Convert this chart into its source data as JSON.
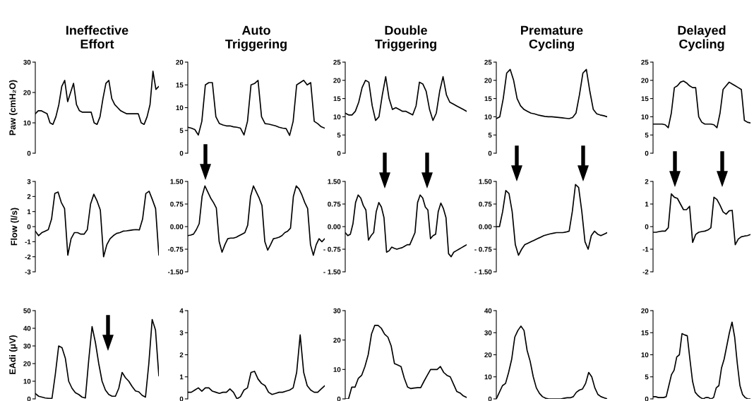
{
  "chart_data": [
    {
      "type": "line",
      "title": "Ineffective\nEffort",
      "ylabel": "Paw (cmH₂O)",
      "categories": [
        null,
        null,
        null,
        null,
        null,
        null,
        null,
        null,
        null,
        null,
        null,
        null,
        null,
        null,
        null,
        null,
        null,
        null,
        null,
        null,
        null,
        null,
        null,
        null,
        null,
        null,
        null,
        null,
        null,
        null,
        null,
        null,
        null,
        null,
        null,
        null,
        null,
        null,
        null,
        null,
        null,
        null,
        null
      ],
      "series": [
        {
          "color": "#000000",
          "values": [
            13,
            14,
            14,
            13.5,
            13,
            10,
            9.5,
            12,
            16,
            22,
            24,
            17,
            20,
            23,
            16,
            14,
            13.5,
            13.5,
            13.5,
            13.5,
            10,
            9.5,
            12,
            18,
            23,
            24,
            18,
            16,
            15,
            14,
            13.5,
            13,
            13,
            13,
            13,
            13,
            10,
            9.5,
            12,
            16,
            27,
            21,
            22
          ]
        }
      ],
      "ylim": [
        0,
        30
      ],
      "yticks": [
        0,
        10,
        20,
        30
      ],
      "tick_labels": "y"
    },
    {
      "type": "line",
      "title": "Auto\nTriggering",
      "categories": [
        null,
        null,
        null,
        null,
        null,
        null,
        null,
        null,
        null,
        null,
        null,
        null,
        null,
        null,
        null,
        null,
        null,
        null,
        null,
        null,
        null,
        null,
        null,
        null,
        null,
        null,
        null,
        null,
        null,
        null,
        null,
        null,
        null,
        null,
        null,
        null,
        null,
        null,
        null,
        null
      ],
      "series": [
        {
          "color": "#000000",
          "values": [
            5.7,
            5.5,
            5.2,
            4,
            7,
            15,
            15.5,
            15.5,
            8,
            6.5,
            6.2,
            6,
            6,
            5.8,
            5.7,
            5.5,
            4,
            7,
            15,
            15.3,
            16,
            8,
            6.5,
            6.4,
            6.2,
            6,
            5.7,
            5.5,
            5.4,
            3.9,
            7,
            15,
            15.5,
            16,
            15,
            15.5,
            7,
            6.5,
            5.8,
            5.5
          ]
        }
      ],
      "ylim": [
        0,
        20
      ],
      "yticks": [
        0,
        5,
        10,
        15,
        20
      ],
      "tick_labels": "y"
    },
    {
      "type": "line",
      "title": "Double\nTriggering",
      "categories": [
        null,
        null,
        null,
        null,
        null,
        null,
        null,
        null,
        null,
        null,
        null,
        null,
        null,
        null,
        null,
        null,
        null,
        null,
        null,
        null,
        null,
        null,
        null,
        null,
        null,
        null,
        null,
        null,
        null,
        null,
        null,
        null,
        null,
        null,
        null,
        null,
        null
      ],
      "series": [
        {
          "color": "#000000",
          "values": [
            11,
            10.5,
            10.5,
            11.5,
            14,
            18,
            20,
            19.5,
            13,
            9,
            10,
            16,
            21,
            15,
            12,
            12.5,
            12,
            11.5,
            11.5,
            11,
            10.5,
            13,
            19.5,
            19,
            17,
            12,
            9,
            11,
            17,
            21,
            16,
            14,
            13.5,
            13,
            12.5,
            12,
            11.5
          ]
        }
      ],
      "ylim": [
        0,
        25
      ],
      "yticks": [
        0,
        5,
        10,
        15,
        20,
        25
      ],
      "tick_labels": "y"
    },
    {
      "type": "line",
      "title": "Premature\nCycling",
      "categories": [
        null,
        null,
        null,
        null,
        null,
        null,
        null,
        null,
        null,
        null,
        null,
        null,
        null,
        null,
        null,
        null,
        null,
        null,
        null,
        null,
        null,
        null,
        null,
        null,
        null,
        null,
        null,
        null,
        null,
        null,
        null,
        null,
        null
      ],
      "series": [
        {
          "color": "#000000",
          "values": [
            9.5,
            10,
            15,
            22,
            23,
            20,
            15,
            13,
            12,
            11.5,
            11,
            10.8,
            10.5,
            10.3,
            10.1,
            10,
            10,
            9.9,
            9.8,
            9.7,
            9.6,
            9.5,
            9.8,
            11,
            16,
            22,
            23,
            17,
            12,
            10.8,
            10.5,
            10.3,
            10
          ]
        }
      ],
      "ylim": [
        0,
        25
      ],
      "yticks": [
        0,
        5,
        10,
        15,
        20,
        25
      ],
      "tick_labels": "y"
    },
    {
      "type": "line",
      "title": "Delayed\nCycling",
      "categories": [
        null,
        null,
        null,
        null,
        null,
        null,
        null,
        null,
        null,
        null,
        null,
        null,
        null,
        null,
        null,
        null,
        null,
        null,
        null,
        null,
        null,
        null,
        null,
        null,
        null,
        null,
        null,
        null,
        null,
        null,
        null,
        null,
        null
      ],
      "series": [
        {
          "color": "#000000",
          "values": [
            8,
            8,
            8,
            8,
            7.8,
            7,
            11,
            18,
            18.5,
            19.5,
            19.8,
            19.3,
            18.5,
            18,
            18,
            10,
            8.5,
            8,
            8,
            8,
            7.8,
            7,
            11,
            17.5,
            18.5,
            19.5,
            19,
            18.5,
            18,
            17.5,
            9,
            8.5,
            8.3
          ]
        }
      ],
      "ylim": [
        0,
        25
      ],
      "yticks": [
        0,
        5,
        10,
        15,
        20,
        25
      ],
      "tick_labels": "y"
    },
    {
      "type": "line",
      "ylabel": "Flow (l/s)",
      "categories": [
        null,
        null,
        null,
        null,
        null,
        null,
        null,
        null,
        null,
        null,
        null,
        null,
        null,
        null,
        null,
        null,
        null,
        null,
        null,
        null,
        null,
        null,
        null,
        null,
        null,
        null,
        null,
        null,
        null,
        null,
        null,
        null,
        null,
        null,
        null,
        null,
        null,
        null,
        null
      ],
      "series": [
        {
          "color": "#000000",
          "values": [
            -0.3,
            -0.6,
            -0.4,
            -0.3,
            -0.2,
            0.5,
            2.2,
            2.3,
            1.6,
            1.2,
            -1.9,
            -0.8,
            -0.4,
            -0.4,
            -0.5,
            -0.5,
            -0.2,
            1.5,
            2.15,
            1.7,
            1.1,
            -2.0,
            -1.2,
            -0.8,
            -0.6,
            -0.45,
            -0.4,
            -0.3,
            -0.28,
            -0.25,
            -0.22,
            -0.2,
            -0.22,
            0.5,
            2.2,
            2.35,
            1.8,
            1.2,
            -1.9
          ]
        }
      ],
      "ylim": [
        -3,
        3
      ],
      "yticks": [
        -3,
        -2,
        -1,
        0,
        1,
        2,
        3
      ],
      "tick_labels": "y"
    },
    {
      "type": "line",
      "categories": [
        null,
        null,
        null,
        null,
        null,
        null,
        null,
        null,
        null,
        null,
        null,
        null,
        null,
        null,
        null,
        null,
        null,
        null,
        null,
        null,
        null,
        null,
        null,
        null,
        null,
        null,
        null,
        null,
        null,
        null,
        null,
        null,
        null,
        null,
        null,
        null,
        null,
        null,
        null,
        null,
        null,
        null,
        null,
        null,
        null,
        null,
        null,
        null,
        null
      ],
      "series": [
        {
          "color": "#000000",
          "values": [
            -0.3,
            -0.28,
            -0.25,
            -0.1,
            0.1,
            1.0,
            1.35,
            1.15,
            0.95,
            0.8,
            0.62,
            -0.5,
            -0.85,
            -0.6,
            -0.4,
            -0.38,
            -0.38,
            -0.35,
            -0.3,
            -0.25,
            -0.2,
            0.05,
            1.0,
            1.35,
            1.15,
            0.95,
            0.7,
            -0.5,
            -0.78,
            -0.6,
            -0.4,
            -0.38,
            -0.35,
            -0.3,
            -0.2,
            -0.15,
            -0.05,
            1.0,
            1.35,
            1.25,
            1.05,
            0.8,
            0.6,
            -0.6,
            -0.95,
            -0.6,
            -0.4,
            -0.5,
            -0.4
          ]
        }
      ],
      "ylim": [
        -1.5,
        1.5
      ],
      "yticks": [
        {
          "value": -1.5,
          "label": "-1.50"
        },
        {
          "value": -0.75,
          "label": "-0.75"
        },
        {
          "value": 0,
          "label": "0.00"
        },
        {
          "value": 0.75,
          "label": "0.75"
        },
        {
          "value": 1.5,
          "label": "1.50"
        }
      ],
      "tick_labels": "y"
    },
    {
      "type": "line",
      "categories": [
        null,
        null,
        null,
        null,
        null,
        null,
        null,
        null,
        null,
        null,
        null,
        null,
        null,
        null,
        null,
        null,
        null,
        null,
        null,
        null,
        null,
        null,
        null,
        null,
        null,
        null,
        null,
        null,
        null,
        null,
        null,
        null,
        null,
        null,
        null,
        null,
        null,
        null,
        null,
        null,
        null,
        null,
        null,
        null,
        null,
        null,
        null,
        null
      ],
      "series": [
        {
          "color": "#000000",
          "values": [
            -0.2,
            -0.3,
            -0.25,
            0.1,
            0.8,
            1.05,
            0.95,
            0.7,
            0.55,
            -0.45,
            -0.3,
            -0.2,
            0.5,
            0.8,
            0.65,
            0.3,
            -0.85,
            -0.8,
            -0.68,
            -0.72,
            -0.75,
            -0.72,
            -0.7,
            -0.65,
            -0.6,
            -0.6,
            -0.4,
            -0.2,
            0.8,
            1.05,
            0.95,
            0.65,
            0.55,
            -0.4,
            -0.3,
            -0.25,
            0.5,
            0.78,
            0.6,
            0.3,
            -0.9,
            -1.0,
            -0.85,
            -0.8,
            -0.75,
            -0.7,
            -0.65,
            -0.6
          ]
        }
      ],
      "ylim": [
        -1.5,
        1.5
      ],
      "yticks": [
        {
          "value": -1.5,
          "label": "- 1.50"
        },
        {
          "value": -0.75,
          "label": "- 0.75"
        },
        {
          "value": 0,
          "label": "0.00"
        },
        {
          "value": 0.75,
          "label": "0.75"
        },
        {
          "value": 1.5,
          "label": "1.50"
        }
      ],
      "tick_labels": "y"
    },
    {
      "type": "line",
      "categories": [
        null,
        null,
        null,
        null,
        null,
        null,
        null,
        null,
        null,
        null,
        null,
        null,
        null,
        null,
        null,
        null,
        null,
        null,
        null,
        null,
        null,
        null,
        null,
        null,
        null,
        null,
        null,
        null,
        null,
        null,
        null,
        null,
        null,
        null,
        null,
        null
      ],
      "series": [
        {
          "color": "#000000",
          "values": [
            0,
            0,
            0.5,
            1.2,
            1.1,
            0.5,
            -0.6,
            -0.95,
            -0.75,
            -0.6,
            -0.55,
            -0.5,
            -0.45,
            -0.4,
            -0.35,
            -0.3,
            -0.27,
            -0.24,
            -0.22,
            -0.2,
            -0.2,
            -0.2,
            -0.18,
            -0.15,
            0.5,
            1.4,
            1.3,
            0.5,
            -0.5,
            -0.75,
            -0.3,
            -0.15,
            -0.25,
            -0.3,
            -0.25,
            -0.2
          ]
        }
      ],
      "ylim": [
        -1.5,
        1.5
      ],
      "yticks": [
        {
          "value": -1.5,
          "label": "- 1.50"
        },
        {
          "value": -0.75,
          "label": "- 0.75"
        },
        {
          "value": 0,
          "label": "0.00"
        },
        {
          "value": 0.75,
          "label": "0.75"
        },
        {
          "value": 1.5,
          "label": "1.50"
        }
      ],
      "tick_labels": "y"
    },
    {
      "type": "line",
      "categories": [
        null,
        null,
        null,
        null,
        null,
        null,
        null,
        null,
        null,
        null,
        null,
        null,
        null,
        null,
        null,
        null,
        null,
        null,
        null,
        null,
        null,
        null,
        null,
        null,
        null,
        null,
        null,
        null,
        null,
        null,
        null,
        null,
        null
      ],
      "series": [
        {
          "color": "#000000",
          "values": [
            -0.25,
            -0.25,
            -0.22,
            -0.2,
            -0.2,
            -0.05,
            1.45,
            1.3,
            1.25,
            1.0,
            0.75,
            0.75,
            0.9,
            -0.7,
            -0.35,
            -0.25,
            -0.22,
            -0.2,
            -0.15,
            -0.05,
            1.3,
            1.2,
            0.95,
            0.65,
            0.55,
            0.7,
            0.72,
            -0.8,
            -0.55,
            -0.45,
            -0.42,
            -0.4,
            -0.35
          ]
        }
      ],
      "ylim": [
        -2,
        2
      ],
      "yticks": [
        -2,
        -1,
        0,
        1,
        2
      ],
      "tick_labels": "y"
    },
    {
      "type": "line",
      "ylabel": "EAdi (μV)",
      "categories": [
        null,
        null,
        null,
        null,
        null,
        null,
        null,
        null,
        null,
        null,
        null,
        null,
        null,
        null,
        null,
        null,
        null,
        null,
        null,
        null,
        null,
        null,
        null,
        null,
        null,
        null,
        null,
        null,
        null,
        null,
        null,
        null,
        null,
        null,
        null,
        null,
        null,
        null
      ],
      "series": [
        {
          "color": "#000000",
          "values": [
            3,
            1.5,
            1,
            0.5,
            0.3,
            0.3,
            14,
            30,
            29,
            23,
            10,
            6,
            3.5,
            2.5,
            1,
            0.5,
            22,
            41,
            32,
            20,
            10,
            5,
            2.5,
            1.5,
            1.5,
            6,
            15,
            12,
            10,
            7,
            4.5,
            4,
            2,
            1,
            20,
            45,
            39,
            13
          ]
        }
      ],
      "ylim": [
        0,
        50
      ],
      "yticks": [
        0,
        10,
        20,
        30,
        40,
        50
      ],
      "tick_labels": "y"
    },
    {
      "type": "line",
      "categories": [
        null,
        null,
        null,
        null,
        null,
        null,
        null,
        null,
        null,
        null,
        null,
        null,
        null,
        null,
        null,
        null,
        null,
        null,
        null,
        null,
        null,
        null,
        null,
        null,
        null,
        null,
        null,
        null,
        null,
        null,
        null,
        null,
        null,
        null,
        null,
        null,
        null,
        null,
        null,
        null
      ],
      "series": [
        {
          "color": "#000000",
          "values": [
            0.3,
            0.3,
            0.4,
            0.5,
            0.35,
            0.5,
            0.5,
            0.35,
            0.3,
            0.25,
            0.3,
            0.3,
            0.45,
            0.3,
            0,
            0.1,
            0.4,
            0.5,
            1.2,
            1.25,
            0.9,
            0.7,
            0.6,
            0.3,
            0.2,
            0.25,
            0.3,
            0.3,
            0.35,
            0.4,
            0.5,
            1.2,
            2.9,
            1.2,
            0.6,
            0.4,
            0.3,
            0.3,
            0.45,
            0.6
          ]
        }
      ],
      "ylim": [
        0,
        4
      ],
      "yticks": [
        0,
        1,
        2,
        3,
        4
      ],
      "tick_labels": "y"
    },
    {
      "type": "line",
      "categories": [
        null,
        null,
        null,
        null,
        null,
        null,
        null,
        null,
        null,
        null,
        null,
        null,
        null,
        null,
        null,
        null,
        null,
        null,
        null,
        null,
        null,
        null,
        null,
        null,
        null,
        null,
        null,
        null,
        null,
        null,
        null,
        null,
        null,
        null,
        null,
        null,
        null,
        null
      ],
      "series": [
        {
          "color": "#000000",
          "values": [
            0,
            0,
            4,
            4,
            7,
            8,
            11,
            15,
            22,
            25,
            25,
            24,
            22,
            21,
            18,
            12,
            11.5,
            11,
            7,
            4,
            3.5,
            3.7,
            3.8,
            3.8,
            6,
            8,
            10,
            10,
            10,
            11,
            9,
            8,
            7.5,
            5,
            2.5,
            2,
            1,
            0.5
          ]
        }
      ],
      "ylim": [
        0,
        30
      ],
      "yticks": [
        0,
        10,
        20,
        30
      ],
      "tick_labels": "y"
    },
    {
      "type": "line",
      "categories": [
        null,
        null,
        null,
        null,
        null,
        null,
        null,
        null,
        null,
        null,
        null,
        null,
        null,
        null,
        null,
        null,
        null,
        null,
        null,
        null,
        null,
        null,
        null,
        null,
        null,
        null,
        null,
        null,
        null,
        null,
        null,
        null,
        null,
        null,
        null,
        null,
        null
      ],
      "series": [
        {
          "color": "#000000",
          "values": [
            0,
            3,
            6,
            7,
            12,
            18,
            28,
            31,
            33,
            31,
            22,
            17,
            10,
            5,
            2.5,
            1,
            0.3,
            0,
            0,
            0,
            0,
            0,
            0.3,
            0.5,
            0.5,
            1,
            3,
            4,
            4.5,
            7,
            12,
            10,
            5,
            2,
            1,
            0.5,
            0
          ]
        }
      ],
      "ylim": [
        0,
        40
      ],
      "yticks": [
        0,
        10,
        20,
        30,
        40
      ],
      "tick_labels": "y"
    },
    {
      "type": "line",
      "categories": [
        null,
        null,
        null,
        null,
        null,
        null,
        null,
        null,
        null,
        null,
        null,
        null,
        null,
        null,
        null,
        null,
        null,
        null,
        null,
        null,
        null,
        null,
        null,
        null,
        null,
        null,
        null,
        null,
        null,
        null,
        null,
        null,
        null,
        null,
        null,
        null,
        null,
        null
      ],
      "series": [
        {
          "color": "#000000",
          "values": [
            0.5,
            0.5,
            0.3,
            0.3,
            0.3,
            0.5,
            3,
            5.5,
            6.5,
            9.5,
            10,
            14.8,
            14.5,
            14.3,
            9,
            4,
            1.5,
            0.8,
            0.3,
            0,
            0.3,
            0.3,
            0,
            0.3,
            2.5,
            3,
            7,
            9,
            12,
            15,
            17.4,
            14,
            8,
            3,
            1,
            0.3,
            0,
            0
          ]
        }
      ],
      "ylim": [
        0,
        20
      ],
      "yticks": [
        0,
        5,
        10,
        15,
        20
      ],
      "tick_labels": "y"
    }
  ]
}
